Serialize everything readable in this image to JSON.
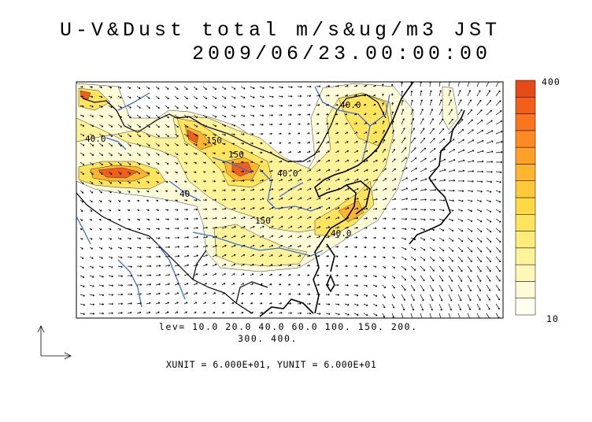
{
  "title": {
    "line1": "U-V&Dust total m/s&ug/m3 JST",
    "line2": "2009/06/23.00:00:00"
  },
  "legend": {
    "levels_line1": "lev= 10.0 20.0 40.0 60.0 100. 150. 200.",
    "levels_line2": "300. 400.",
    "units": "XUNIT = 6.000E+01, YUNIT = 6.000E+01"
  },
  "colorbar": {
    "max_label": "400",
    "min_label": "10",
    "colors": [
      "#fffff0",
      "#fffbd6",
      "#fff7b8",
      "#fff39a",
      "#ffec7c",
      "#ffe45e",
      "#ffd846",
      "#ffc83a",
      "#ffb530",
      "#ffa028",
      "#ff8a22",
      "#fb741e",
      "#f25f1a",
      "#e64a16"
    ]
  },
  "contour_labels": [
    "40.0",
    "150",
    "40.0",
    "150",
    "40.0",
    "40",
    "150",
    "40.0"
  ],
  "colors": {
    "rivers": "#3a6ed8",
    "coast": "#000000",
    "frame": "#000000"
  }
}
